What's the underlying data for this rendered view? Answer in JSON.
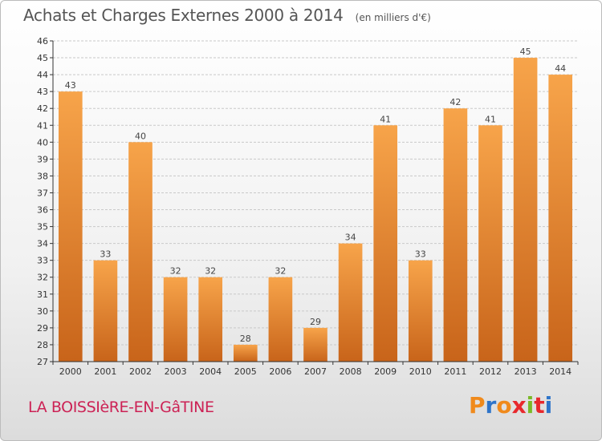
{
  "header": {
    "title": "Achats et Charges Externes 2000 à 2014",
    "subtitle": "(en milliers d'€)"
  },
  "footer": {
    "commune": "LA BOISSIèRE-EN-GâTINE",
    "brand": "Proxiti",
    "brand_colors": [
      "#f08a1c",
      "#2e74c9",
      "#f08a1c",
      "#e8282d",
      "#7ab928",
      "#e8282d",
      "#2e74c9"
    ]
  },
  "colors": {
    "bar_light": "#f7a44a",
    "bar_dark": "#c8641a",
    "grid": "#c9c9c9",
    "axis": "#333333"
  },
  "chart_data": {
    "type": "bar",
    "categories": [
      "2000",
      "2001",
      "2002",
      "2003",
      "2004",
      "2005",
      "2006",
      "2007",
      "2008",
      "2009",
      "2010",
      "2011",
      "2012",
      "2013",
      "2014"
    ],
    "values": [
      43,
      33,
      40,
      32,
      32,
      28,
      32,
      29,
      34,
      41,
      33,
      42,
      41,
      45,
      44
    ],
    "ylim": [
      27,
      46
    ],
    "yticks": [
      27,
      28,
      29,
      30,
      31,
      32,
      33,
      34,
      35,
      36,
      37,
      38,
      39,
      40,
      41,
      42,
      43,
      44,
      45,
      46
    ],
    "grid": true,
    "data_labels": true
  }
}
